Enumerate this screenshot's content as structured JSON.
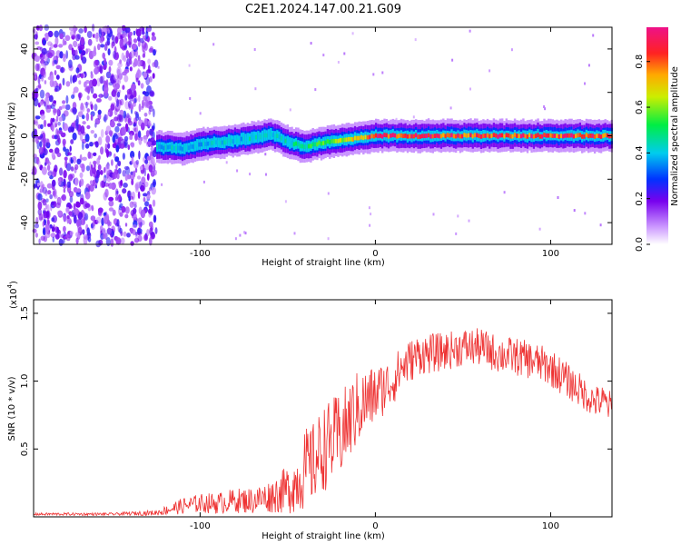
{
  "title": "C2E1.2024.147.00.21.G09",
  "chart_data": [
    {
      "type": "heatmap",
      "xlabel": "Height of straight line (km)",
      "ylabel": "Frequency (Hz)",
      "xlim": [
        -195,
        135
      ],
      "ylim": [
        -50,
        50
      ],
      "x_ticks": [
        -100,
        0,
        100
      ],
      "y_ticks": [
        -40,
        -20,
        0,
        20,
        40
      ],
      "colorbar": {
        "label": "Normalized spectral amplitude",
        "range": [
          0,
          0.95
        ],
        "ticks": [
          0.0,
          0.2,
          0.4,
          0.6,
          0.8
        ]
      },
      "noise_region_x": [
        -195,
        -125
      ],
      "ridge": {
        "x": [
          -125,
          -110,
          -100,
          -90,
          -80,
          -70,
          -60,
          -55,
          -50,
          -45,
          -40,
          -35,
          -30,
          -20,
          -10,
          0,
          10,
          20,
          40,
          60,
          80,
          100,
          120,
          135
        ],
        "frequency": [
          -5,
          -6,
          -4,
          -3,
          -2,
          -1,
          1,
          -1,
          -3,
          -4,
          -5,
          -4,
          -3,
          -2,
          -1,
          0,
          0,
          0,
          0,
          0,
          0,
          0,
          0,
          0
        ],
        "peak_amplitude": [
          0.45,
          0.45,
          0.45,
          0.45,
          0.45,
          0.48,
          0.5,
          0.5,
          0.5,
          0.52,
          0.55,
          0.58,
          0.65,
          0.7,
          0.8,
          0.95,
          0.95,
          0.95,
          0.95,
          0.95,
          0.95,
          0.95,
          0.95,
          0.9
        ]
      }
    },
    {
      "type": "line",
      "xlabel": "Height of straight line (km)",
      "ylabel": "SNR (10 * v/v)",
      "y_multiplier": "(x10^4)",
      "y_multiplier_base": "(x10",
      "y_multiplier_exp": "4",
      "y_multiplier_close": ")",
      "xlim": [
        -195,
        135
      ],
      "ylim": [
        0,
        1.6
      ],
      "x_ticks": [
        -100,
        0,
        100
      ],
      "y_ticks": [
        0.5,
        1.0,
        1.5
      ],
      "series": [
        {
          "color": "#ee3333",
          "x": [
            -195,
            -150,
            -125,
            -110,
            -100,
            -90,
            -80,
            -70,
            -60,
            -50,
            -45,
            -40,
            -35,
            -30,
            -20,
            -15,
            -10,
            -5,
            0,
            5,
            10,
            15,
            20,
            25,
            30,
            40,
            50,
            60,
            70,
            80,
            90,
            100,
            105,
            110,
            115,
            120,
            125,
            130,
            135
          ],
          "y": [
            0.02,
            0.02,
            0.03,
            0.08,
            0.1,
            0.1,
            0.12,
            0.12,
            0.15,
            0.2,
            0.25,
            0.35,
            0.4,
            0.5,
            0.6,
            0.7,
            0.8,
            0.85,
            0.9,
            0.95,
            1.0,
            1.1,
            1.15,
            1.2,
            1.2,
            1.22,
            1.25,
            1.25,
            1.2,
            1.18,
            1.15,
            1.1,
            1.05,
            1.0,
            0.95,
            0.9,
            0.85,
            0.85,
            0.8
          ],
          "noise_amplitude": [
            0.01,
            0.01,
            0.02,
            0.06,
            0.07,
            0.08,
            0.09,
            0.1,
            0.12,
            0.18,
            0.22,
            0.3,
            0.3,
            0.32,
            0.32,
            0.3,
            0.28,
            0.25,
            0.22,
            0.2,
            0.18,
            0.17,
            0.16,
            0.15,
            0.15,
            0.14,
            0.14,
            0.14,
            0.14,
            0.14,
            0.14,
            0.14,
            0.14,
            0.13,
            0.13,
            0.12,
            0.12,
            0.12,
            0.12
          ]
        }
      ]
    }
  ]
}
